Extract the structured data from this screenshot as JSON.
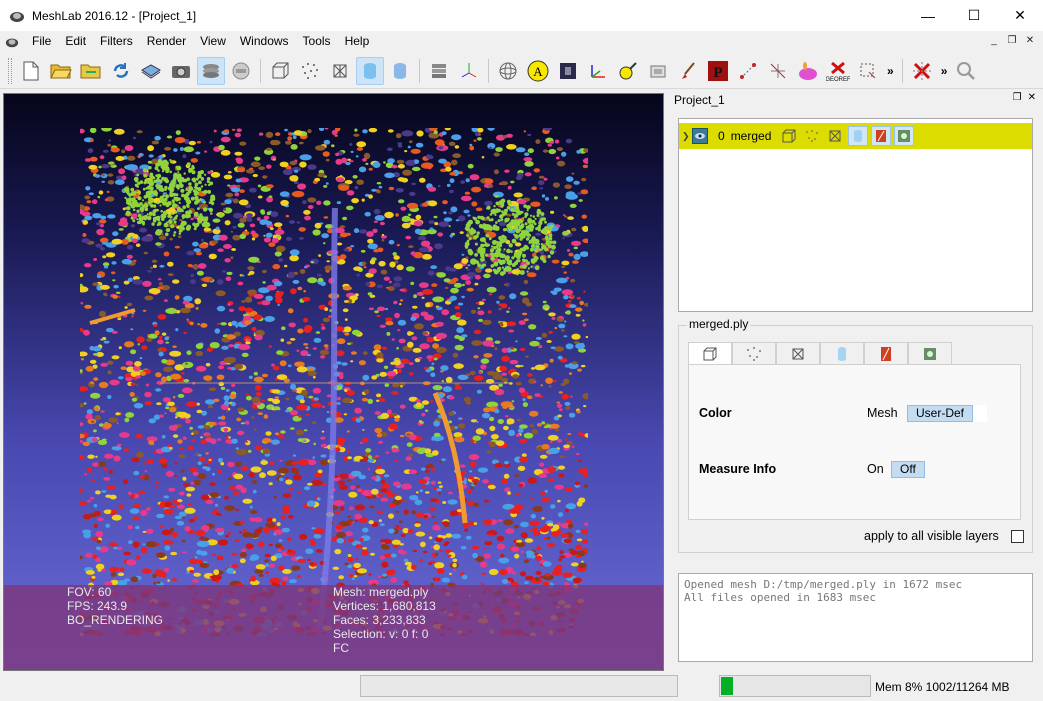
{
  "window": {
    "title": "MeshLab 2016.12 - [Project_1]",
    "minimize": "—",
    "maximize": "☐",
    "close": "✕"
  },
  "menu": {
    "items": [
      "File",
      "Edit",
      "Filters",
      "Render",
      "View",
      "Windows",
      "Tools",
      "Help"
    ],
    "mdi_minimize": "_",
    "mdi_restore": "❐",
    "mdi_close": "✕"
  },
  "toolbar": {
    "more_1": "»",
    "more_2": "»"
  },
  "viewport": {
    "info_left": [
      "FOV: 60",
      "FPS:   243.9",
      "BO_RENDERING"
    ],
    "info_mid": [
      "Mesh: merged.ply",
      "Vertices: 1,680,813",
      "Faces: 3,233,833",
      "Selection: v: 0 f: 0",
      "FC"
    ]
  },
  "layers_panel": {
    "title": "Project_1",
    "float_btn": "❐",
    "close_btn": "✕",
    "layer": {
      "index": "0",
      "name": "merged"
    }
  },
  "properties": {
    "group_title": "merged.ply",
    "color_label": "Color",
    "color_text": "Mesh",
    "color_value": "User-Def",
    "measure_label": "Measure Info",
    "measure_on": "On",
    "measure_off": "Off",
    "apply_label": "apply to all visible layers"
  },
  "log": {
    "lines": [
      "Opened mesh D:/tmp/merged.ply in 1672 msec",
      "All files opened in 1683 msec"
    ]
  },
  "status": {
    "memory_text": "Mem 8% 1002/11264 MB",
    "memory_fraction": 0.08
  },
  "colors": {
    "layer_highlight": "#dcdc00",
    "mem_fill": "#06b025"
  }
}
